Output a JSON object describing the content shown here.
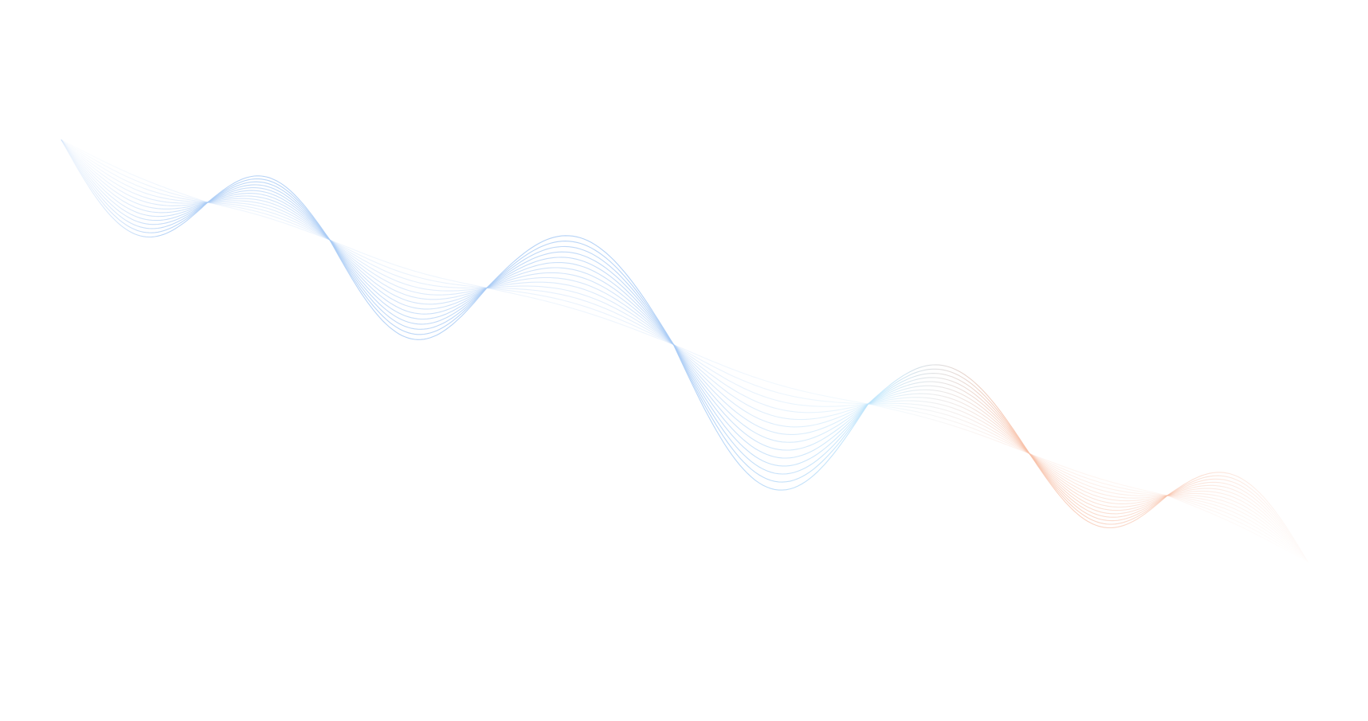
{
  "graphic": {
    "type": "decorative-wave-lines",
    "colors": {
      "background": "#ffffff",
      "primary_blue": "#a9cbf5",
      "light_cyan": "#bfe6fb",
      "accent_orange": "#f7bfa6"
    }
  }
}
